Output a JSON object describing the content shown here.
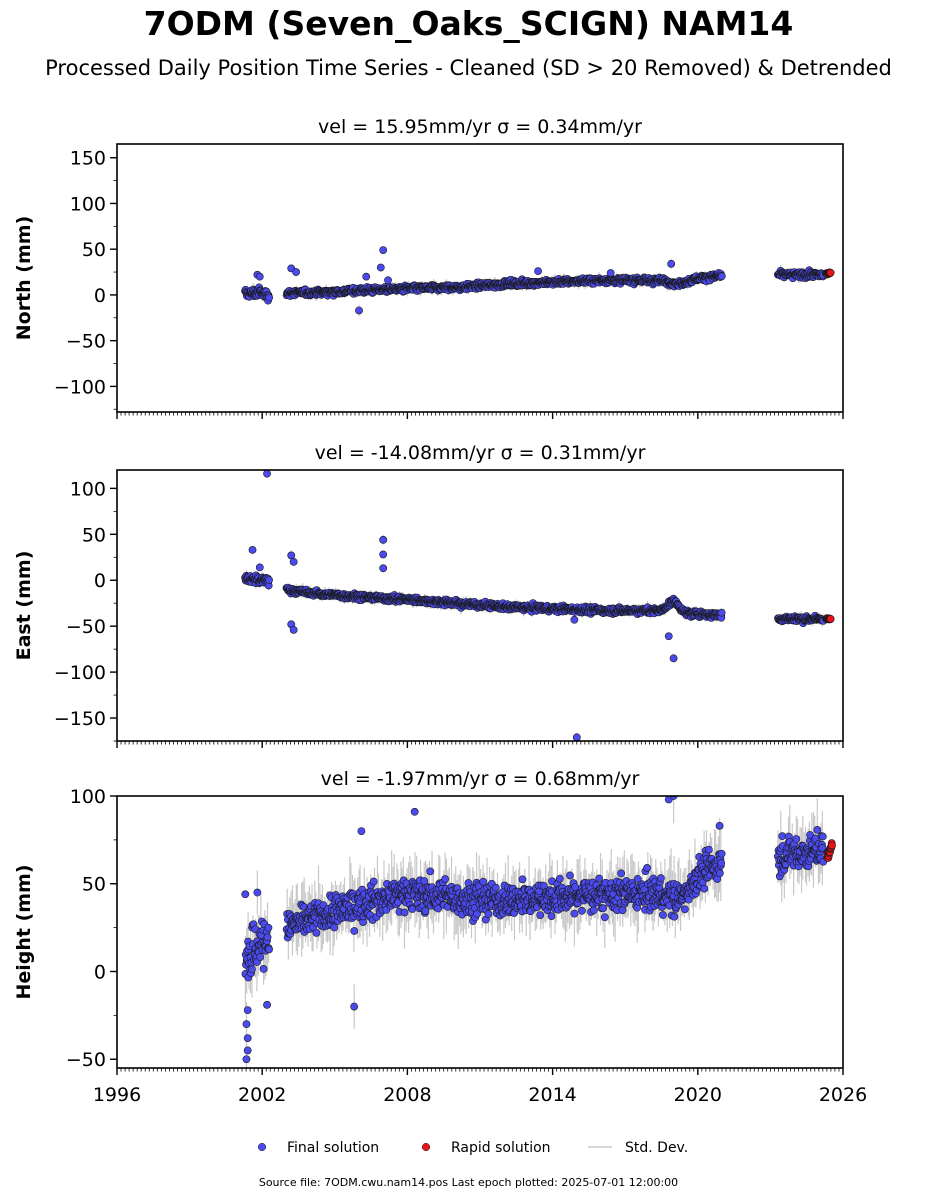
{
  "title": "7ODM (Seven_Oaks_SCIGN) NAM14",
  "subtitle": "Processed Daily Position Time Series - Cleaned (SD > 20 Removed) & Detrended",
  "footer": "Source file: 7ODM.cwu.nam14.pos  Last epoch plotted: 2025-07-01 12:00:00",
  "colors": {
    "final": "#4a4aef",
    "rapid": "#e8141a",
    "std": "#c8c8c8",
    "edge": "#1a1a1a"
  },
  "chart_data": [
    {
      "type": "scatter",
      "panel_title": "vel = 15.95mm/yr   σ = 0.34mm/yr",
      "ylabel": "North (mm)",
      "xlim": [
        1996,
        2026
      ],
      "ylim": [
        -128,
        165
      ],
      "xticks": [
        1996,
        2002,
        2008,
        2014,
        2020,
        2026
      ],
      "xtick_labels_shown": false,
      "yticks": [
        -100,
        -50,
        0,
        50,
        100,
        150
      ],
      "ytick_labels": [
        "−100",
        "−50",
        "0",
        "50",
        "100",
        "150"
      ],
      "series": [
        {
          "name": "Final solution",
          "trend": [
            [
              2001.3,
              1
            ],
            [
              2001.9,
              3
            ],
            [
              2002.2,
              0
            ],
            [
              2003.0,
              2
            ],
            [
              2004.5,
              3
            ],
            [
              2006.0,
              5
            ],
            [
              2008.0,
              7
            ],
            [
              2010.0,
              8
            ],
            [
              2012.0,
              12
            ],
            [
              2014.0,
              14
            ],
            [
              2016.0,
              16
            ],
            [
              2018.5,
              16
            ],
            [
              2019.2,
              12
            ],
            [
              2020.0,
              18
            ],
            [
              2021.0,
              21
            ],
            [
              2023.3,
              22
            ],
            [
              2025.2,
              22
            ]
          ],
          "scatter": 4,
          "gaps": [
            [
              2002.3,
              2003.0
            ],
            [
              2021.0,
              2023.3
            ]
          ],
          "outliers": [
            [
              2007.0,
              49
            ],
            [
              2006.9,
              30
            ],
            [
              2006.3,
              20
            ],
            [
              2006.0,
              -17
            ],
            [
              2003.2,
              29
            ],
            [
              2003.4,
              25
            ],
            [
              2001.8,
              22
            ],
            [
              2001.9,
              20
            ],
            [
              2013.4,
              26
            ],
            [
              2018.9,
              34
            ],
            [
              2016.4,
              24
            ],
            [
              2007.2,
              16
            ]
          ]
        },
        {
          "name": "Rapid solution",
          "trend": [
            [
              2025.3,
              23
            ],
            [
              2025.5,
              24
            ]
          ],
          "scatter": 1
        }
      ]
    },
    {
      "type": "scatter",
      "panel_title": "vel = -14.08mm/yr   σ = 0.31mm/yr",
      "ylabel": "East (mm)",
      "xlim": [
        1996,
        2026
      ],
      "ylim": [
        -175,
        120
      ],
      "xticks": [
        1996,
        2002,
        2008,
        2014,
        2020,
        2026
      ],
      "xtick_labels_shown": false,
      "yticks": [
        -150,
        -100,
        -50,
        0,
        50,
        100
      ],
      "ytick_labels": [
        "−150",
        "−100",
        "−50",
        "0",
        "50",
        "100"
      ],
      "series": [
        {
          "name": "Final solution",
          "trend": [
            [
              2001.3,
              2
            ],
            [
              2002.2,
              -1
            ],
            [
              2003.0,
              -10
            ],
            [
              2004.0,
              -14
            ],
            [
              2006.0,
              -18
            ],
            [
              2008.0,
              -21
            ],
            [
              2010.0,
              -25
            ],
            [
              2012.0,
              -29
            ],
            [
              2014.0,
              -31
            ],
            [
              2016.0,
              -33
            ],
            [
              2018.5,
              -33
            ],
            [
              2019.0,
              -22
            ],
            [
              2019.5,
              -36
            ],
            [
              2021.0,
              -38
            ],
            [
              2023.3,
              -42
            ],
            [
              2025.2,
              -42
            ]
          ],
          "scatter": 4,
          "gaps": [
            [
              2002.3,
              2003.0
            ],
            [
              2021.0,
              2023.3
            ]
          ],
          "outliers": [
            [
              2002.2,
              116
            ],
            [
              2001.6,
              33
            ],
            [
              2001.9,
              14
            ],
            [
              2007.0,
              44
            ],
            [
              2007.0,
              28
            ],
            [
              2007.0,
              13
            ],
            [
              2003.2,
              27
            ],
            [
              2003.3,
              20
            ],
            [
              2003.2,
              -48
            ],
            [
              2003.3,
              -54
            ],
            [
              2018.8,
              -61
            ],
            [
              2019.0,
              -85
            ],
            [
              2015.0,
              -171
            ],
            [
              2014.9,
              -43
            ]
          ]
        },
        {
          "name": "Rapid solution",
          "trend": [
            [
              2025.3,
              -42
            ],
            [
              2025.5,
              -42
            ]
          ],
          "scatter": 1
        }
      ]
    },
    {
      "type": "scatter",
      "panel_title": "vel = -1.97mm/yr   σ = 0.68mm/yr",
      "ylabel": "Height (mm)",
      "xlim": [
        1996,
        2026
      ],
      "ylim": [
        -55,
        100
      ],
      "xticks": [
        1996,
        2002,
        2008,
        2014,
        2020,
        2026
      ],
      "xtick_labels": [
        "1996",
        "2002",
        "2008",
        "2014",
        "2020",
        "2026"
      ],
      "xtick_labels_shown": true,
      "yticks": [
        -50,
        0,
        50,
        100
      ],
      "ytick_labels": [
        "−50",
        "0",
        "50",
        "100"
      ],
      "series": [
        {
          "name": "Final solution",
          "trend": [
            [
              2001.3,
              10
            ],
            [
              2001.6,
              12
            ],
            [
              2002.2,
              20
            ],
            [
              2003.0,
              25
            ],
            [
              2004.0,
              30
            ],
            [
              2006.0,
              38
            ],
            [
              2008.0,
              45
            ],
            [
              2010.0,
              42
            ],
            [
              2012.0,
              40
            ],
            [
              2014.0,
              42
            ],
            [
              2016.0,
              44
            ],
            [
              2018.5,
              44
            ],
            [
              2019.2,
              40
            ],
            [
              2020.0,
              55
            ],
            [
              2021.0,
              62
            ],
            [
              2023.3,
              65
            ],
            [
              2025.2,
              70
            ]
          ],
          "scatter": 12,
          "gaps": [
            [
              2002.3,
              2003.0
            ],
            [
              2021.0,
              2023.3
            ]
          ],
          "outliers": [
            [
              2001.35,
              -50
            ],
            [
              2001.4,
              -45
            ],
            [
              2001.4,
              -38
            ],
            [
              2001.35,
              -30
            ],
            [
              2001.4,
              -22
            ],
            [
              2001.3,
              44
            ],
            [
              2001.8,
              45
            ],
            [
              2002.2,
              -19
            ],
            [
              2018.8,
              98
            ],
            [
              2019.0,
              100
            ],
            [
              2008.3,
              91
            ],
            [
              2006.1,
              80
            ],
            [
              2005.8,
              -20
            ],
            [
              2020.9,
              83
            ]
          ]
        },
        {
          "name": "Rapid solution",
          "trend": [
            [
              2025.35,
              66
            ],
            [
              2025.55,
              72
            ]
          ],
          "scatter": 3
        }
      ]
    }
  ],
  "legend": [
    {
      "label": "Final solution",
      "kind": "dot",
      "color": "#4a4aef"
    },
    {
      "label": "Rapid solution",
      "kind": "dot",
      "color": "#e8141a"
    },
    {
      "label": "Std. Dev.",
      "kind": "line",
      "color": "#c8c8c8"
    }
  ]
}
